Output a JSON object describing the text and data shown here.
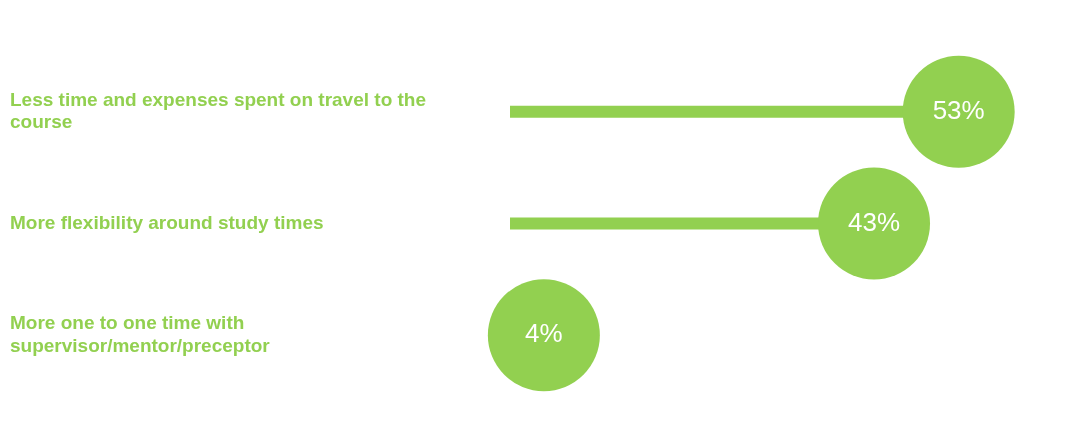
{
  "chart_data": {
    "type": "lollipop",
    "orientation": "horizontal",
    "marker": "circle",
    "categories": [
      "Less time and expenses spent on travel to the course",
      "More flexibility around study times",
      "More one to one time with supervisor/mentor/preceptor"
    ],
    "values": [
      53,
      43,
      4
    ],
    "value_labels": [
      "53%",
      "43%",
      "4%"
    ],
    "color": "#92d050"
  }
}
